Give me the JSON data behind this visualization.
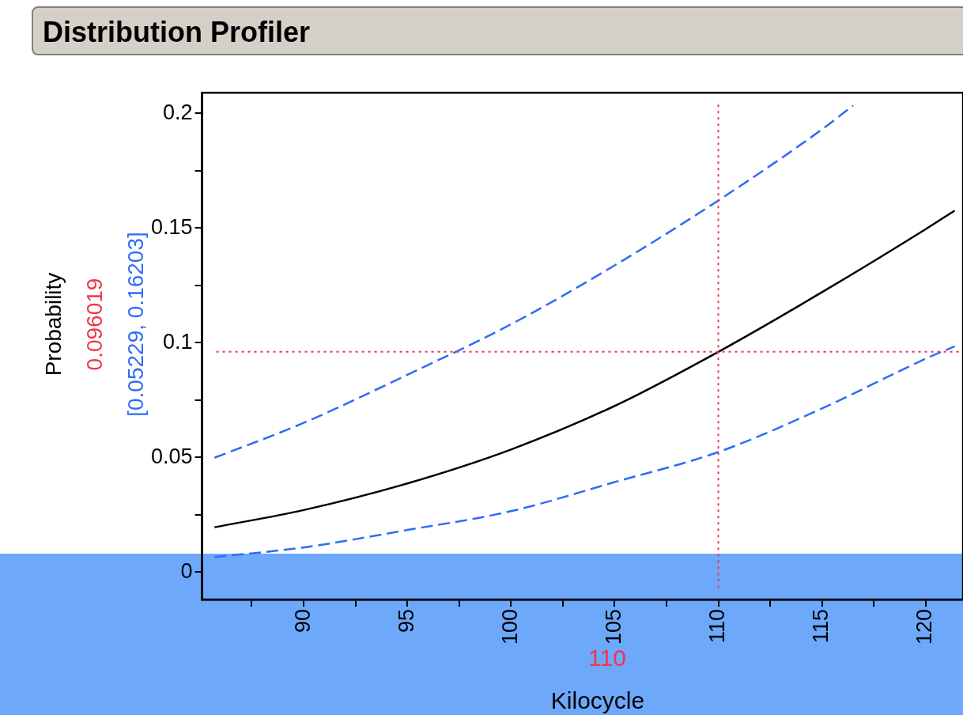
{
  "chart_data": {
    "type": "line",
    "title": "Distribution Profiler",
    "xlabel": "Kilocycle",
    "ylabel": "Probability",
    "annotations": [
      "0.096019",
      "[0.05229, 0.16203]",
      "110"
    ],
    "x": [
      85.7,
      90,
      95,
      100,
      105,
      110,
      115,
      120,
      121.4
    ],
    "series": [
      {
        "color": "#000000",
        "line_style": "solid",
        "values": [
          0.0195,
          0.027,
          0.0386,
          0.0534,
          0.0724,
          0.096,
          0.122,
          0.1495,
          0.1576
        ]
      },
      {
        "color": "#2f6cf6",
        "line_style": "dashed",
        "x": [
          85.7,
          90,
          95,
          100,
          105,
          110,
          115,
          116.5
        ],
        "values": [
          0.0498,
          0.065,
          0.086,
          0.108,
          0.1337,
          0.162,
          0.193,
          0.2034
        ]
      },
      {
        "color": "#2f6cf6",
        "line_style": "dashed",
        "values": [
          0.0065,
          0.0107,
          0.0183,
          0.0265,
          0.0392,
          0.0523,
          0.0713,
          0.093,
          0.0984
        ]
      }
    ],
    "ref_lines": [
      {
        "axis": "x",
        "value": 110,
        "color": "#f0364a",
        "line_style": "dotted"
      },
      {
        "axis": "y",
        "value": 0.096019,
        "color": "#f0364a",
        "line_style": "dotted"
      }
    ],
    "xlim": [
      85.1,
      121.8
    ],
    "ylim": [
      -0.012,
      0.209
    ],
    "xticks": [
      {
        "value": 87.5,
        "label": null
      },
      90,
      {
        "value": 92.5,
        "label": null
      },
      95,
      {
        "value": 97.5,
        "label": null
      },
      100,
      {
        "value": 102.5,
        "label": null
      },
      105,
      {
        "value": 107.5,
        "label": null
      },
      110,
      {
        "value": 112.5,
        "label": null
      },
      115,
      {
        "value": 117.5,
        "label": null
      },
      120
    ],
    "yticks": [
      0,
      {
        "value": 0.025,
        "label": null
      },
      0.05,
      {
        "value": 0.075,
        "label": null
      },
      0.1,
      {
        "value": 0.125,
        "label": null
      },
      0.15,
      {
        "value": 0.175,
        "label": null
      },
      0.2
    ],
    "grid": false,
    "legend": false,
    "marker": "none"
  }
}
